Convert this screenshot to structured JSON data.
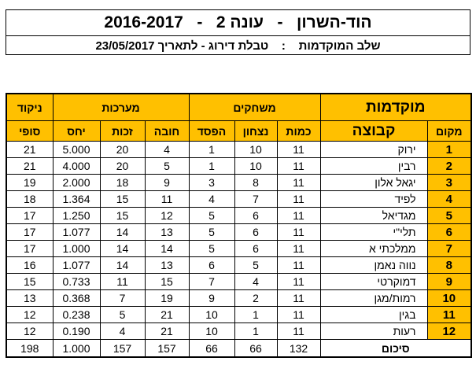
{
  "header": {
    "title_parts": [
      "הוד-השרון",
      "-",
      "עונה 2",
      "-",
      "2016-2017"
    ],
    "subtitle_parts": [
      "שלב המוקדמות",
      ":",
      "טבלת דירוג - לתאריך 23/05/2017"
    ]
  },
  "table": {
    "group_headers": {
      "stage": "מוקדמות",
      "games": "משחקים",
      "sets": "מערכות",
      "points": "ניקוד"
    },
    "columns": {
      "rank": "מקום",
      "team": "קבוצה",
      "played": "כמות",
      "wins": "נצחון",
      "losses": "הפסד",
      "sets_lost": "חובה",
      "sets_won": "זכות",
      "ratio": "יחס",
      "final": "סופי"
    },
    "rows": [
      {
        "rank": "1",
        "team": "ירוק",
        "played": "11",
        "wins": "10",
        "losses": "1",
        "sets_lost": "4",
        "sets_won": "20",
        "ratio": "5.000",
        "final": "21"
      },
      {
        "rank": "2",
        "team": "רבין",
        "played": "11",
        "wins": "10",
        "losses": "1",
        "sets_lost": "5",
        "sets_won": "20",
        "ratio": "4.000",
        "final": "21"
      },
      {
        "rank": "3",
        "team": "יגאל אלון",
        "played": "11",
        "wins": "8",
        "losses": "3",
        "sets_lost": "9",
        "sets_won": "18",
        "ratio": "2.000",
        "final": "19"
      },
      {
        "rank": "4",
        "team": "לפיד",
        "played": "11",
        "wins": "7",
        "losses": "4",
        "sets_lost": "11",
        "sets_won": "15",
        "ratio": "1.364",
        "final": "18"
      },
      {
        "rank": "5",
        "team": "מגדיאל",
        "played": "11",
        "wins": "6",
        "losses": "5",
        "sets_lost": "12",
        "sets_won": "15",
        "ratio": "1.250",
        "final": "17"
      },
      {
        "rank": "6",
        "team": "תלי\"י",
        "played": "11",
        "wins": "6",
        "losses": "5",
        "sets_lost": "13",
        "sets_won": "14",
        "ratio": "1.077",
        "final": "17"
      },
      {
        "rank": "7",
        "team": "ממלכתי א",
        "played": "11",
        "wins": "6",
        "losses": "5",
        "sets_lost": "14",
        "sets_won": "14",
        "ratio": "1.000",
        "final": "17"
      },
      {
        "rank": "8",
        "team": "נווה נאמן",
        "played": "11",
        "wins": "5",
        "losses": "6",
        "sets_lost": "13",
        "sets_won": "14",
        "ratio": "1.077",
        "final": "16"
      },
      {
        "rank": "9",
        "team": "דמוקרטי",
        "played": "11",
        "wins": "4",
        "losses": "7",
        "sets_lost": "15",
        "sets_won": "11",
        "ratio": "0.733",
        "final": "15"
      },
      {
        "rank": "10",
        "team": "רמות/מגן",
        "played": "11",
        "wins": "2",
        "losses": "9",
        "sets_lost": "19",
        "sets_won": "7",
        "ratio": "0.368",
        "final": "13"
      },
      {
        "rank": "11",
        "team": "בגין",
        "played": "11",
        "wins": "1",
        "losses": "10",
        "sets_lost": "21",
        "sets_won": "5",
        "ratio": "0.238",
        "final": "12"
      },
      {
        "rank": "12",
        "team": "רעות",
        "played": "11",
        "wins": "1",
        "losses": "10",
        "sets_lost": "21",
        "sets_won": "4",
        "ratio": "0.190",
        "final": "12"
      }
    ],
    "totals": {
      "label": "סיכום",
      "played": "132",
      "wins": "66",
      "losses": "66",
      "sets_lost": "157",
      "sets_won": "157",
      "ratio": "1.000",
      "final": "198"
    }
  },
  "colors": {
    "header_fill": "#FFC000"
  }
}
